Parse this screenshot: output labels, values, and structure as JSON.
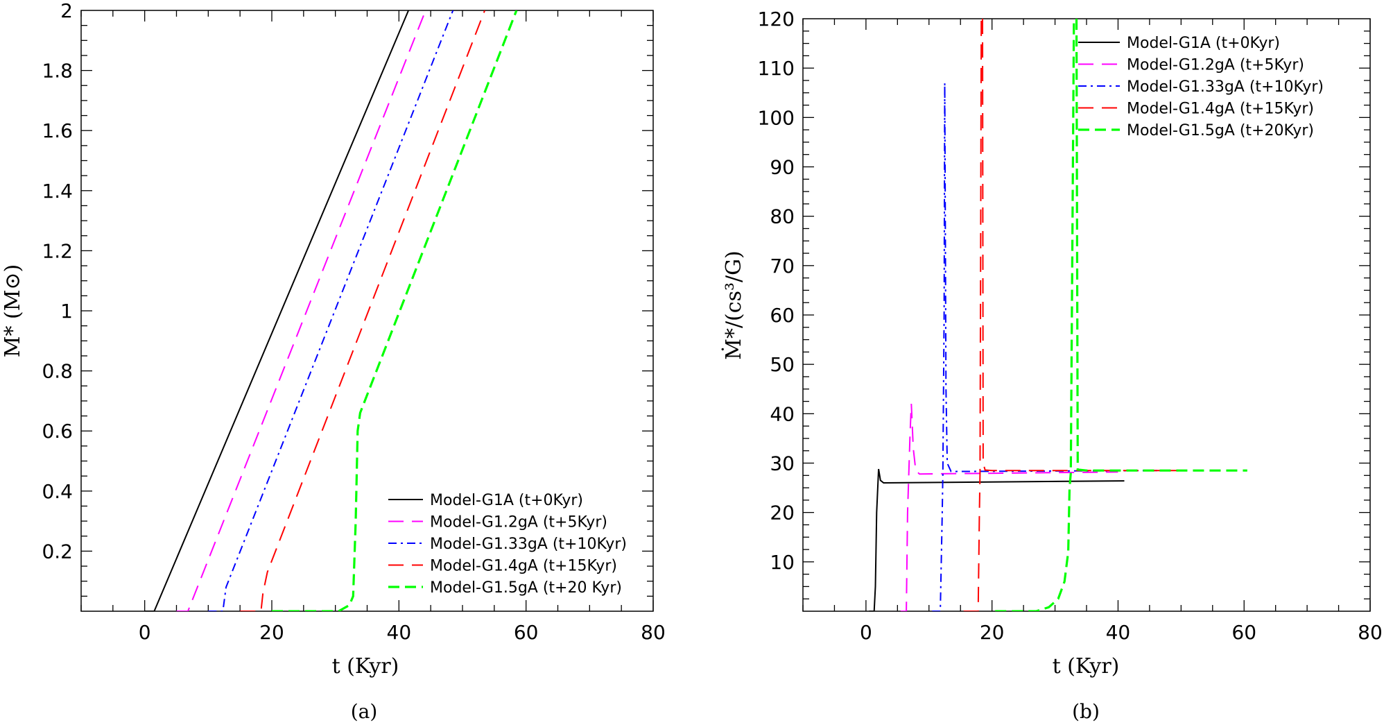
{
  "figure": {
    "captions": [
      "(a)",
      "(b)"
    ]
  },
  "chart_data": [
    {
      "type": "line",
      "xlabel": "t (Kyr)",
      "ylabel": "M* (M⊙)",
      "xlim": [
        -10,
        80
      ],
      "ylim": [
        0,
        2
      ],
      "x_ticks": [
        "0",
        "20",
        "40",
        "60",
        "80"
      ],
      "y_ticks": [
        "0.2",
        "0.4",
        "0.6",
        "0.8",
        "1",
        "1.2",
        "1.4",
        "1.6",
        "1.8",
        "2"
      ],
      "legend_position": "lower-right",
      "series": [
        {
          "name": "Model-G1A (t+0Kyr)",
          "color": "#000000",
          "dash": "solid",
          "points": [
            [
              0,
              0.0
            ],
            [
              1.5,
              0.0
            ],
            [
              41.5,
              2.0
            ]
          ]
        },
        {
          "name": "Model-G1.2gA (t+5Kyr)",
          "color": "#ff00ff",
          "dash": "long-dash",
          "points": [
            [
              5,
              0.0
            ],
            [
              6.8,
              0.0
            ],
            [
              44.2,
              2.0
            ]
          ]
        },
        {
          "name": "Model-G1.33gA (t+10Kyr)",
          "color": "#0000ff",
          "dash": "dash-dot",
          "points": [
            [
              10,
              0.0
            ],
            [
              12.3,
              0.0
            ],
            [
              12.8,
              0.08
            ],
            [
              48.5,
              2.0
            ]
          ]
        },
        {
          "name": "Model-G1.4gA (t+15Kyr)",
          "color": "#ff0000",
          "dash": "long-dash",
          "points": [
            [
              15,
              0.0
            ],
            [
              18.3,
              0.0
            ],
            [
              18.6,
              0.06
            ],
            [
              19.3,
              0.13
            ],
            [
              53.5,
              2.0
            ]
          ]
        },
        {
          "name": "Model-G1.5gA (t+20 Kyr)",
          "color": "#00ff00",
          "dash": "heavy-dash",
          "points": [
            [
              20,
              0.0
            ],
            [
              30.5,
              0.0
            ],
            [
              32.2,
              0.02
            ],
            [
              32.8,
              0.05
            ],
            [
              33.2,
              0.3
            ],
            [
              33.5,
              0.6
            ],
            [
              33.9,
              0.66
            ],
            [
              58.5,
              2.0
            ]
          ]
        }
      ]
    },
    {
      "type": "line",
      "xlabel": "t (Kyr)",
      "ylabel": "Ṁ*/(cs³/G)",
      "xlim": [
        -10,
        80
      ],
      "ylim": [
        0,
        120
      ],
      "x_ticks": [
        "0",
        "20",
        "40",
        "60",
        "80"
      ],
      "y_ticks": [
        "10",
        "20",
        "30",
        "40",
        "50",
        "60",
        "70",
        "80",
        "90",
        "100",
        "110",
        "120"
      ],
      "legend_position": "top-right",
      "series": [
        {
          "name": "Model-G1A (t+0Kyr)",
          "color": "#000000",
          "dash": "solid",
          "points": [
            [
              0.5,
              0
            ],
            [
              1.3,
              0
            ],
            [
              1.5,
              5
            ],
            [
              1.7,
              20
            ],
            [
              2.0,
              28.8
            ],
            [
              2.3,
              26.5
            ],
            [
              2.8,
              26.0
            ],
            [
              41,
              26.4
            ]
          ]
        },
        {
          "name": "Model-G1.2gA (t+5Kyr)",
          "color": "#ff00ff",
          "dash": "long-dash",
          "points": [
            [
              5.5,
              0
            ],
            [
              6.4,
              0
            ],
            [
              6.6,
              20
            ],
            [
              6.8,
              28
            ],
            [
              7.0,
              36
            ],
            [
              7.2,
              42
            ],
            [
              7.5,
              33
            ],
            [
              7.9,
              28.5
            ],
            [
              8.5,
              27.8
            ],
            [
              40,
              28.2
            ]
          ]
        },
        {
          "name": "Model-G1.33gA (t+10Kyr)",
          "color": "#0000ff",
          "dash": "dash-dot",
          "points": [
            [
              10.5,
              0
            ],
            [
              11.8,
              0
            ],
            [
              12.1,
              20
            ],
            [
              12.2,
              28
            ],
            [
              12.4,
              60
            ],
            [
              12.5,
              107
            ],
            [
              12.7,
              45
            ],
            [
              12.9,
              30
            ],
            [
              13.5,
              28.3
            ],
            [
              47,
              28.5
            ]
          ]
        },
        {
          "name": "Model-G1.4gA (t+15Kyr)",
          "color": "#ff0000",
          "dash": "long-dash",
          "points": [
            [
              15.5,
              0
            ],
            [
              17.8,
              0
            ],
            [
              18.0,
              20
            ],
            [
              18.1,
              28
            ],
            [
              18.3,
              120
            ]
          ],
          "points_b": [
            [
              18.5,
              120
            ],
            [
              18.6,
              30
            ],
            [
              18.9,
              28.6
            ],
            [
              20,
              28.5
            ],
            [
              53.5,
              28.5
            ]
          ]
        },
        {
          "name": "Model-G1.5gA (t+20Kyr)",
          "color": "#00ff00",
          "dash": "heavy-dash",
          "points": [
            [
              20.5,
              0
            ],
            [
              27,
              0
            ],
            [
              29,
              0.8
            ],
            [
              30.5,
              2.5
            ],
            [
              31.5,
              6
            ],
            [
              32.1,
              12
            ],
            [
              32.3,
              25
            ],
            [
              32.5,
              28
            ],
            [
              33.0,
              120
            ]
          ],
          "points_b": [
            [
              33.4,
              120
            ],
            [
              33.6,
              28.7
            ],
            [
              35,
              28.5
            ],
            [
              60.5,
              28.5
            ]
          ]
        }
      ]
    }
  ]
}
